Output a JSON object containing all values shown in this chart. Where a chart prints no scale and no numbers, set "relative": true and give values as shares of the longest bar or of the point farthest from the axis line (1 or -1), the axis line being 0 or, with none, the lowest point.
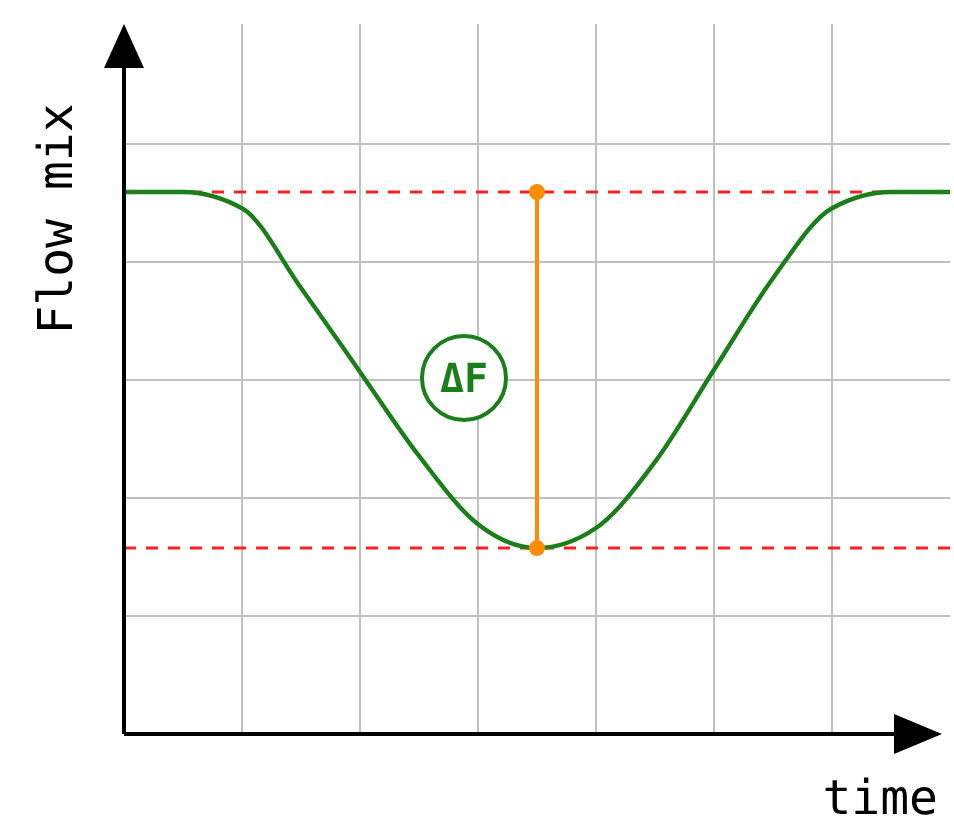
{
  "chart_data": {
    "type": "line",
    "relative": true,
    "xlabel": "time",
    "ylabel": "Flow mix",
    "categories": [
      null,
      null,
      null,
      null,
      null,
      null,
      null,
      null,
      null,
      null,
      null,
      null,
      null,
      null,
      null
    ],
    "series": [
      {
        "color": "#1a7f1a",
        "values": [
          1,
          1,
          0.97,
          0.823,
          0.668,
          0.513,
          0.387,
          0.343,
          0.38,
          0.502,
          0.672,
          0.841,
          0.97,
          1,
          1
        ]
      }
    ],
    "ref_lines": [
      {
        "axis": "y",
        "value": 1,
        "color": "#ff2020",
        "line_style": "dashed"
      },
      {
        "axis": "y",
        "value": 0.343,
        "color": "#ff2020",
        "line_style": "dashed"
      }
    ],
    "annotations": [
      "ΔF"
    ],
    "grid": true,
    "marker": "none",
    "line_style": "solid"
  }
}
